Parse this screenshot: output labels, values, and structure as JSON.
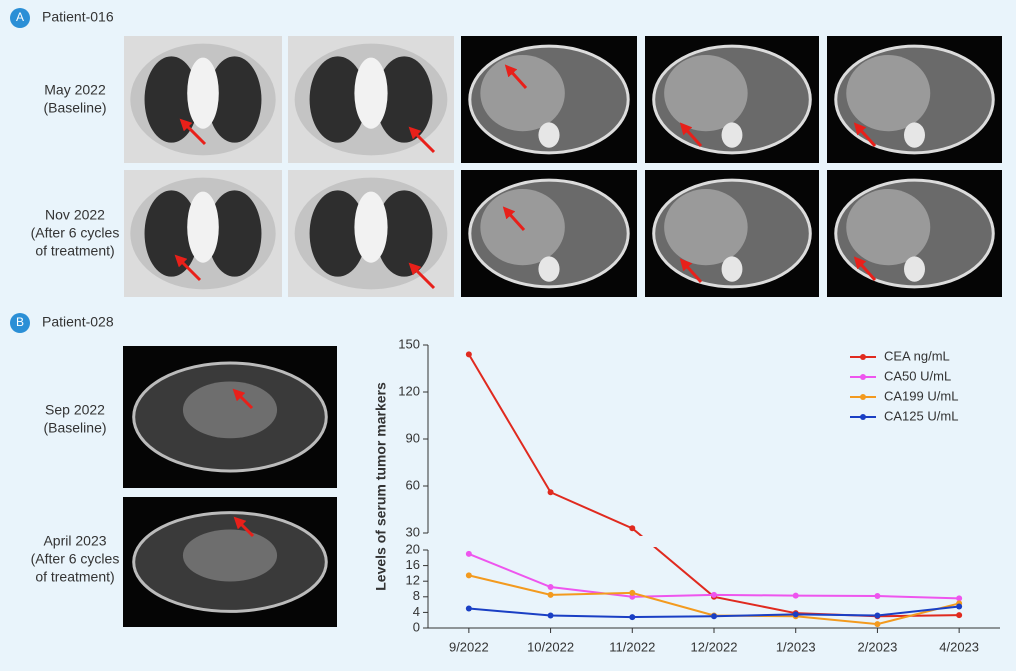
{
  "panel_a": {
    "label": "A",
    "title": "Patient-016",
    "rows": [
      [
        "May 2022",
        "(Baseline)"
      ],
      [
        "Nov 2022",
        "(After 6 cycles",
        "of treatment)"
      ]
    ]
  },
  "panel_b": {
    "label": "B",
    "title": "Patient-028",
    "rows": [
      [
        "Sep 2022",
        "(Baseline)"
      ],
      [
        "April 2023",
        "(After 6 cycles",
        "of treatment)"
      ]
    ]
  },
  "chart_data": {
    "type": "line",
    "ylabel": "Levels of serum tumor markers",
    "categories": [
      "9/2022",
      "10/2022",
      "11/2022",
      "12/2022",
      "1/2023",
      "2/2023",
      "4/2023"
    ],
    "series": [
      {
        "name": "CEA ng/mL",
        "color": "#e02a1f",
        "values": [
          144,
          56,
          33,
          8,
          3.8,
          3,
          3.3
        ]
      },
      {
        "name": "CA50 U/mL",
        "color": "#ee55ee",
        "values": [
          19,
          10.5,
          8,
          8.5,
          8.3,
          8.2,
          7.6
        ]
      },
      {
        "name": "CA199 U/mL",
        "color": "#f39a1e",
        "values": [
          13.5,
          8.5,
          9,
          3.2,
          3,
          1,
          6.3
        ]
      },
      {
        "name": "CA125 U/mL",
        "color": "#1a3fc4",
        "values": [
          5,
          3.2,
          2.8,
          3,
          3.5,
          3.2,
          5.5
        ]
      }
    ],
    "ylim": [
      0,
      150
    ],
    "ybreak": [
      20,
      30
    ],
    "yticks": [
      0,
      4,
      8,
      12,
      16,
      20,
      30,
      60,
      90,
      120,
      150
    ],
    "legend": "upper right"
  }
}
